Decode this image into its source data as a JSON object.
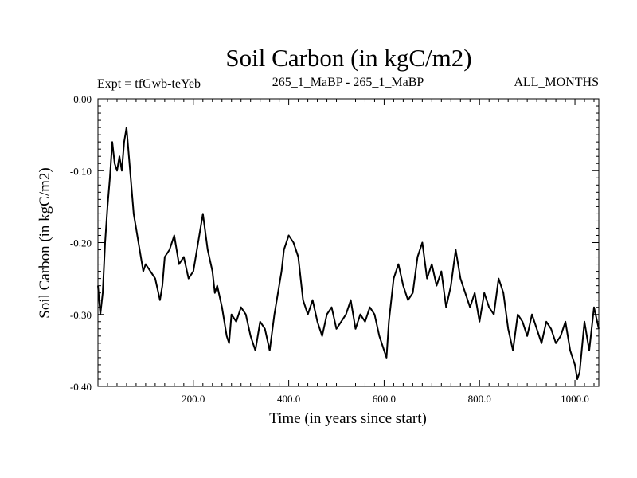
{
  "chart_data": {
    "type": "line",
    "title": "Soil Carbon (in kgC/m2)",
    "expt_label": "Expt = tfGwb-teYeb",
    "period_label": "265_1_MaBP - 265_1_MaBP",
    "months_label": "ALL_MONTHS",
    "xlabel": "Time (in years since start)",
    "ylabel": "Soil Carbon (in kgC/m2)",
    "xlim": [
      0,
      1050
    ],
    "ylim": [
      -0.4,
      0.0
    ],
    "xticks": [
      200,
      400,
      600,
      800,
      1000
    ],
    "xtick_labels": [
      "200.0",
      "400.0",
      "600.0",
      "800.0",
      "1000.0"
    ],
    "yticks": [
      0.0,
      -0.1,
      -0.2,
      -0.3,
      -0.4
    ],
    "ytick_labels": [
      "0.00",
      "-0.10",
      "-0.20",
      "-0.30",
      "-0.40"
    ],
    "line_color": "#000000",
    "series": [
      {
        "name": "Soil Carbon",
        "x": [
          0,
          5,
          10,
          15,
          20,
          25,
          30,
          35,
          40,
          45,
          50,
          55,
          60,
          65,
          70,
          75,
          80,
          85,
          90,
          95,
          100,
          110,
          120,
          130,
          135,
          140,
          150,
          160,
          170,
          180,
          190,
          200,
          210,
          220,
          230,
          240,
          245,
          250,
          260,
          270,
          275,
          280,
          290,
          300,
          310,
          320,
          330,
          340,
          350,
          360,
          370,
          380,
          385,
          390,
          400,
          410,
          420,
          430,
          440,
          450,
          460,
          470,
          480,
          490,
          500,
          510,
          520,
          530,
          540,
          550,
          560,
          570,
          580,
          590,
          600,
          605,
          610,
          620,
          630,
          640,
          650,
          660,
          670,
          680,
          690,
          700,
          710,
          720,
          730,
          740,
          750,
          760,
          770,
          780,
          790,
          800,
          810,
          820,
          830,
          840,
          850,
          860,
          870,
          880,
          890,
          900,
          910,
          920,
          930,
          940,
          950,
          960,
          970,
          980,
          990,
          1000,
          1005,
          1010,
          1020,
          1030,
          1040,
          1050
        ],
        "y": [
          -0.26,
          -0.3,
          -0.27,
          -0.2,
          -0.15,
          -0.11,
          -0.06,
          -0.09,
          -0.1,
          -0.08,
          -0.1,
          -0.06,
          -0.04,
          -0.08,
          -0.12,
          -0.16,
          -0.18,
          -0.2,
          -0.22,
          -0.24,
          -0.23,
          -0.24,
          -0.25,
          -0.28,
          -0.26,
          -0.22,
          -0.21,
          -0.19,
          -0.23,
          -0.22,
          -0.25,
          -0.24,
          -0.2,
          -0.16,
          -0.21,
          -0.24,
          -0.27,
          -0.26,
          -0.29,
          -0.33,
          -0.34,
          -0.3,
          -0.31,
          -0.29,
          -0.3,
          -0.33,
          -0.35,
          -0.31,
          -0.32,
          -0.35,
          -0.3,
          -0.26,
          -0.24,
          -0.21,
          -0.19,
          -0.2,
          -0.22,
          -0.28,
          -0.3,
          -0.28,
          -0.31,
          -0.33,
          -0.3,
          -0.29,
          -0.32,
          -0.31,
          -0.3,
          -0.28,
          -0.32,
          -0.3,
          -0.31,
          -0.29,
          -0.3,
          -0.33,
          -0.35,
          -0.36,
          -0.31,
          -0.25,
          -0.23,
          -0.26,
          -0.28,
          -0.27,
          -0.22,
          -0.2,
          -0.25,
          -0.23,
          -0.26,
          -0.24,
          -0.29,
          -0.26,
          -0.21,
          -0.25,
          -0.27,
          -0.29,
          -0.27,
          -0.31,
          -0.27,
          -0.29,
          -0.3,
          -0.25,
          -0.27,
          -0.32,
          -0.35,
          -0.3,
          -0.31,
          -0.33,
          -0.3,
          -0.32,
          -0.34,
          -0.31,
          -0.32,
          -0.34,
          -0.33,
          -0.31,
          -0.35,
          -0.37,
          -0.39,
          -0.38,
          -0.31,
          -0.35,
          -0.29,
          -0.32
        ]
      }
    ]
  }
}
